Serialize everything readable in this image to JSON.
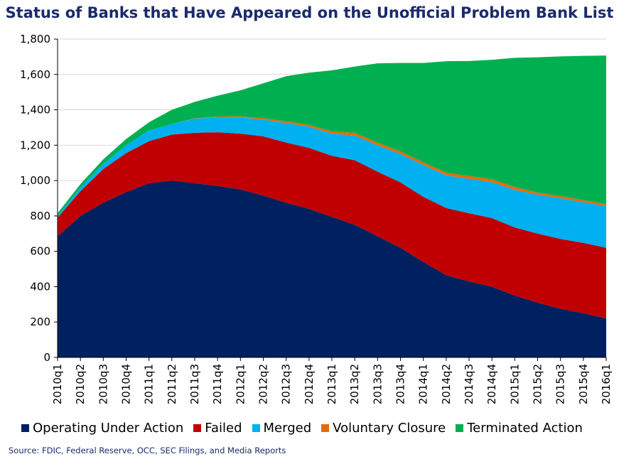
{
  "chart_data": {
    "type": "area",
    "stacked": true,
    "title": "Status of Banks that Have Appeared on the Unofficial Problem Bank List",
    "source": "Source: FDIC, Federal Reserve, OCC, SEC Filings, and Media Reports",
    "xlabel": "",
    "ylabel": "",
    "ylim": [
      0,
      1800
    ],
    "yticks": [
      "0",
      "200",
      "400",
      "600",
      "800",
      "1,000",
      "1,200",
      "1,400",
      "1,600",
      "1,800"
    ],
    "grid": true,
    "legend_position": "bottom",
    "categories": [
      "2010q1",
      "2010q2",
      "2010q3",
      "2010q4",
      "2011q1",
      "2011q2",
      "2011q3",
      "2011q4",
      "2012q1",
      "2012q2",
      "2012q3",
      "2012q4",
      "2013q1",
      "2013q2",
      "2013q3",
      "2013q4",
      "2014q1",
      "2014q2",
      "2014q3",
      "2014q4",
      "2015q1",
      "2015q2",
      "2015q3",
      "2015q4",
      "2016q1"
    ],
    "series": [
      {
        "name": "Operating Under Action",
        "color": "#002060",
        "values": [
          685,
          800,
          875,
          935,
          985,
          1000,
          985,
          970,
          950,
          915,
          875,
          840,
          795,
          750,
          685,
          620,
          540,
          465,
          430,
          400,
          350,
          310,
          275,
          250,
          220
        ]
      },
      {
        "name": "Failed",
        "color": "#c00000",
        "values": [
          105,
          140,
          190,
          220,
          238,
          260,
          285,
          303,
          315,
          335,
          340,
          345,
          345,
          365,
          365,
          370,
          368,
          380,
          385,
          388,
          385,
          390,
          395,
          398,
          400
        ]
      },
      {
        "name": "Merged",
        "color": "#00b0f0",
        "values": [
          10,
          20,
          30,
          45,
          60,
          60,
          80,
          85,
          92,
          95,
          110,
          120,
          125,
          140,
          150,
          160,
          180,
          185,
          195,
          203,
          212,
          220,
          230,
          230,
          235
        ]
      },
      {
        "name": "Voluntary Closure",
        "color": "#e46c0a",
        "values": [
          0,
          0,
          0,
          0,
          0,
          0,
          2,
          4,
          6,
          8,
          10,
          10,
          13,
          15,
          15,
          15,
          15,
          15,
          16,
          17,
          17,
          12,
          12,
          12,
          12
        ]
      },
      {
        "name": "Terminated Action",
        "color": "#00b050",
        "values": [
          15,
          20,
          25,
          35,
          47,
          80,
          93,
          118,
          147,
          197,
          255,
          295,
          345,
          375,
          448,
          500,
          562,
          630,
          650,
          675,
          730,
          765,
          790,
          815,
          840
        ]
      }
    ]
  }
}
